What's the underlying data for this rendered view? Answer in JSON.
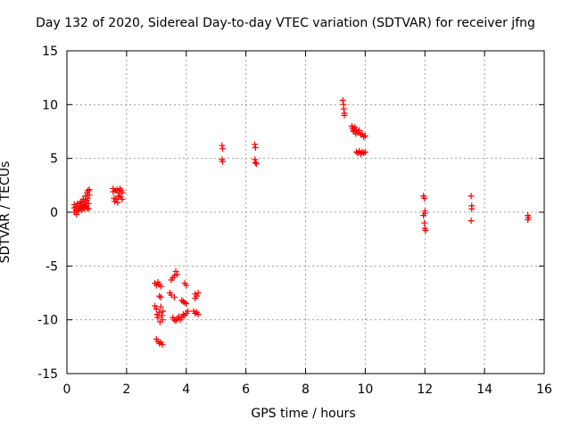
{
  "chart_data": {
    "type": "scatter",
    "title": "Day 132 of 2020, Sidereal Day-to-day VTEC variation (SDTVAR) for receiver jfng",
    "xlabel": "GPS time / hours",
    "ylabel": "SDTVAR / TECUs",
    "xlim": [
      0,
      16
    ],
    "ylim": [
      -15,
      15
    ],
    "xticks": [
      "0",
      "2",
      "4",
      "6",
      "8",
      "10",
      "12",
      "14",
      "16"
    ],
    "yticks": [
      "-15",
      "-10",
      "-5",
      "0",
      "5",
      "10",
      "15"
    ],
    "grid": true,
    "marker": "+",
    "color": "#ff0000",
    "series": [
      {
        "name": "SDTVAR",
        "points": [
          [
            0.25,
            0.0
          ],
          [
            0.25,
            0.4
          ],
          [
            0.25,
            0.7
          ],
          [
            0.3,
            0.2
          ],
          [
            0.3,
            0.5
          ],
          [
            0.32,
            -0.2
          ],
          [
            0.35,
            0.8
          ],
          [
            0.38,
            0.1
          ],
          [
            0.4,
            0.5
          ],
          [
            0.42,
            0.3
          ],
          [
            0.45,
            0.9
          ],
          [
            0.48,
            0.6
          ],
          [
            0.5,
            0.2
          ],
          [
            0.5,
            1.0
          ],
          [
            0.52,
            0.4
          ],
          [
            0.55,
            0.7
          ],
          [
            0.55,
            1.2
          ],
          [
            0.58,
            0.3
          ],
          [
            0.6,
            0.9
          ],
          [
            0.62,
            1.5
          ],
          [
            0.62,
            0.5
          ],
          [
            0.65,
            1.1
          ],
          [
            0.65,
            0.6
          ],
          [
            0.68,
            1.8
          ],
          [
            0.68,
            0.4
          ],
          [
            0.7,
            1.3
          ],
          [
            0.7,
            2.0
          ],
          [
            0.72,
            0.8
          ],
          [
            0.72,
            0.3
          ],
          [
            0.75,
            1.6
          ],
          [
            0.75,
            2.1
          ],
          [
            1.55,
            2.2
          ],
          [
            1.55,
            1.9
          ],
          [
            1.58,
            1.3
          ],
          [
            1.6,
            1.0
          ],
          [
            1.62,
            2.0
          ],
          [
            1.65,
            1.2
          ],
          [
            1.68,
            2.1
          ],
          [
            1.7,
            0.9
          ],
          [
            1.72,
            1.5
          ],
          [
            1.75,
            1.8
          ],
          [
            1.78,
            2.2
          ],
          [
            1.8,
            1.4
          ],
          [
            1.82,
            2.0
          ],
          [
            1.85,
            1.2
          ],
          [
            1.85,
            1.8
          ],
          [
            2.95,
            -6.6
          ],
          [
            3.0,
            -6.8
          ],
          [
            3.05,
            -6.5
          ],
          [
            3.1,
            -6.7
          ],
          [
            3.15,
            -6.9
          ],
          [
            2.95,
            -8.7
          ],
          [
            3.0,
            -9.0
          ],
          [
            3.02,
            -9.5
          ],
          [
            3.05,
            -9.8
          ],
          [
            3.1,
            -9.3
          ],
          [
            3.12,
            -10.2
          ],
          [
            3.15,
            -8.8
          ],
          [
            3.18,
            -9.6
          ],
          [
            3.2,
            -10.0
          ],
          [
            3.22,
            -9.2
          ],
          [
            3.1,
            -7.8
          ],
          [
            3.15,
            -7.9
          ],
          [
            3.0,
            -11.8
          ],
          [
            3.05,
            -12.0
          ],
          [
            3.1,
            -12.2
          ],
          [
            3.15,
            -12.1
          ],
          [
            3.2,
            -12.3
          ],
          [
            3.5,
            -6.3
          ],
          [
            3.55,
            -6.1
          ],
          [
            3.6,
            -5.9
          ],
          [
            3.65,
            -5.5
          ],
          [
            3.7,
            -5.8
          ],
          [
            3.45,
            -7.5
          ],
          [
            3.5,
            -7.7
          ],
          [
            3.6,
            -7.9
          ],
          [
            3.55,
            -9.8
          ],
          [
            3.6,
            -10.0
          ],
          [
            3.65,
            -10.1
          ],
          [
            3.7,
            -9.9
          ],
          [
            3.75,
            -9.7
          ],
          [
            3.8,
            -10.0
          ],
          [
            3.85,
            -9.8
          ],
          [
            3.9,
            -9.5
          ],
          [
            3.95,
            -9.6
          ],
          [
            4.0,
            -9.4
          ],
          [
            4.05,
            -9.2
          ],
          [
            3.85,
            -8.2
          ],
          [
            3.9,
            -8.3
          ],
          [
            3.95,
            -8.4
          ],
          [
            4.0,
            -8.5
          ],
          [
            3.95,
            -6.6
          ],
          [
            4.0,
            -6.8
          ],
          [
            4.3,
            -7.6
          ],
          [
            4.35,
            -7.8
          ],
          [
            4.3,
            -8.0
          ],
          [
            4.4,
            -7.5
          ],
          [
            4.25,
            -9.2
          ],
          [
            4.3,
            -9.4
          ],
          [
            4.35,
            -9.3
          ],
          [
            4.4,
            -9.5
          ],
          [
            5.2,
            6.2
          ],
          [
            5.22,
            5.9
          ],
          [
            5.2,
            4.9
          ],
          [
            5.22,
            4.7
          ],
          [
            6.3,
            6.3
          ],
          [
            6.32,
            6.0
          ],
          [
            6.3,
            4.9
          ],
          [
            6.32,
            4.6
          ],
          [
            6.35,
            4.5
          ],
          [
            9.25,
            10.4
          ],
          [
            9.27,
            10.0
          ],
          [
            9.28,
            9.6
          ],
          [
            9.3,
            9.2
          ],
          [
            9.3,
            9.0
          ],
          [
            9.55,
            8.0
          ],
          [
            9.58,
            7.8
          ],
          [
            9.6,
            7.6
          ],
          [
            9.62,
            7.5
          ],
          [
            9.65,
            7.9
          ],
          [
            9.68,
            7.3
          ],
          [
            9.7,
            7.7
          ],
          [
            9.75,
            7.4
          ],
          [
            9.8,
            7.6
          ],
          [
            9.85,
            7.2
          ],
          [
            9.9,
            7.3
          ],
          [
            9.95,
            7.0
          ],
          [
            10.0,
            7.1
          ],
          [
            9.7,
            5.6
          ],
          [
            9.75,
            5.5
          ],
          [
            9.8,
            5.7
          ],
          [
            9.85,
            5.4
          ],
          [
            9.9,
            5.6
          ],
          [
            9.95,
            5.5
          ],
          [
            10.0,
            5.6
          ],
          [
            11.95,
            1.5
          ],
          [
            11.98,
            1.3
          ],
          [
            12.0,
            0.1
          ],
          [
            12.0,
            -0.1
          ],
          [
            11.95,
            -0.3
          ],
          [
            11.98,
            -1.0
          ],
          [
            12.0,
            -1.5
          ],
          [
            12.02,
            -1.7
          ],
          [
            13.55,
            1.5
          ],
          [
            13.57,
            0.6
          ],
          [
            13.57,
            0.3
          ],
          [
            13.55,
            -0.8
          ],
          [
            15.45,
            -0.3
          ],
          [
            15.47,
            -0.5
          ],
          [
            15.45,
            -0.7
          ]
        ]
      }
    ]
  }
}
